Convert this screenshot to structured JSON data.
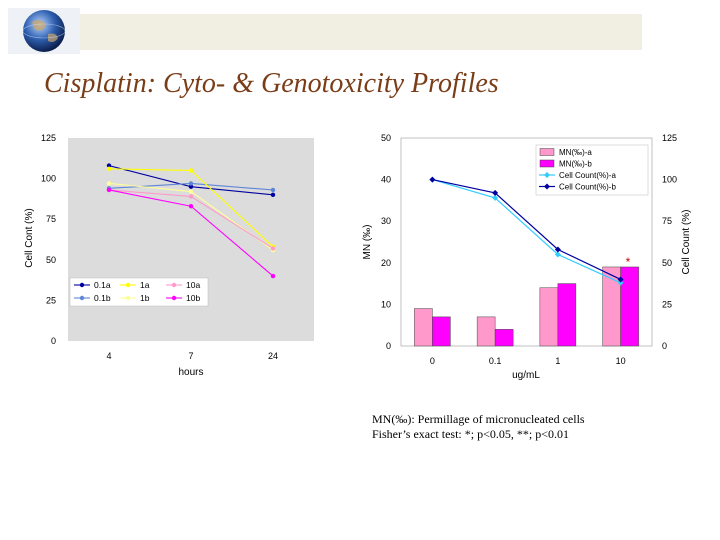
{
  "slide": {
    "title": "Cisplatin: Cyto- & Genotoxicity Profiles",
    "footnote_mn": "MN(‰): Permillage of micronucleated cells",
    "footnote_stats": "Fisher’s exact test:  *; p<0.05, **; p<0.01"
  },
  "chart_data": [
    {
      "type": "line",
      "title": "",
      "xlabel": "hours",
      "ylabel": "Cell Cont (%)",
      "categories": [
        "4",
        "7",
        "24"
      ],
      "ylim": [
        0,
        125
      ],
      "yticks": [
        "0",
        "25",
        "50",
        "75",
        "100",
        "125"
      ],
      "grid": false,
      "legend_position": "bottom-left",
      "series": [
        {
          "name": "0.1a",
          "color": "#0000a0",
          "marker": "circle",
          "values": [
            108,
            95,
            90
          ]
        },
        {
          "name": "0.1b",
          "color": "#5f86d6",
          "marker": "circle",
          "values": [
            94,
            97,
            93
          ]
        },
        {
          "name": "1a",
          "color": "#ffff00",
          "marker": "circle",
          "values": [
            106,
            105,
            58
          ]
        },
        {
          "name": "1b",
          "color": "#ffff99",
          "marker": "circle",
          "values": [
            97,
            92,
            56
          ]
        },
        {
          "name": "10a",
          "color": "#ff99cc",
          "marker": "circle",
          "values": [
            93,
            89,
            57
          ]
        },
        {
          "name": "10b",
          "color": "#ff00ff",
          "marker": "circle",
          "values": [
            93,
            83,
            40
          ]
        }
      ]
    },
    {
      "type": "bar",
      "title": "",
      "xlabel": "ug/mL",
      "ylabel": "MN (‰)",
      "ylabel_right": "Cell Count (%)",
      "categories": [
        "0",
        "0.1",
        "1",
        "10"
      ],
      "ylim": [
        0,
        50
      ],
      "ylim_right": [
        0,
        125
      ],
      "yticks": [
        "0",
        "10",
        "20",
        "30",
        "40",
        "50"
      ],
      "yticks_right": [
        "0",
        "25",
        "50",
        "75",
        "100",
        "125"
      ],
      "grid": false,
      "legend_position": "top-right",
      "annotation": "*",
      "series": [
        {
          "name": "MN(‰)-a",
          "kind": "bar",
          "color": "#ff99cc",
          "values": [
            9,
            7,
            14,
            19
          ]
        },
        {
          "name": "MN(‰)-b",
          "kind": "bar",
          "color": "#ff00ff",
          "values": [
            7,
            4,
            15,
            19
          ]
        },
        {
          "name": "Cell Count(%)-a",
          "kind": "line",
          "color": "#33ccff",
          "values": [
            100,
            89,
            55,
            38
          ]
        },
        {
          "name": "Cell Count(%)-b",
          "kind": "line",
          "color": "#0000a0",
          "values": [
            100,
            92,
            58,
            40
          ]
        }
      ]
    }
  ]
}
